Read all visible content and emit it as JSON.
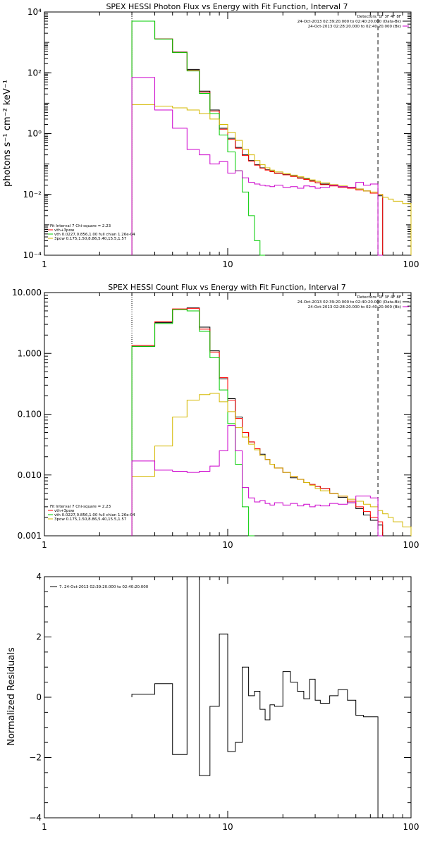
{
  "chart_data": [
    {
      "type": "line",
      "title": "SPEX HESSI Photon Flux vs Energy with Fit Function, Interval 7",
      "ylabel": "photons s⁻¹ cm⁻² keV⁻¹",
      "xlabel": "",
      "xscale": "log",
      "yscale": "log",
      "xlim": [
        1,
        100
      ],
      "ylim": [
        0.0001,
        10000
      ],
      "xticks": [
        {
          "v": 1,
          "t": "1"
        },
        {
          "v": 10,
          "t": "10"
        },
        {
          "v": 100,
          "t": "100"
        }
      ],
      "yticks": [
        {
          "v": 0.0001,
          "t": "10⁻⁴"
        },
        {
          "v": 0.01,
          "t": "10⁻²"
        },
        {
          "v": 1,
          "t": "10⁰"
        },
        {
          "v": 100,
          "t": "10²"
        },
        {
          "v": 10000,
          "t": "10⁴"
        }
      ],
      "vlines": [
        {
          "x": 3,
          "style": "dotted"
        },
        {
          "x": 66,
          "style": "dashed"
        }
      ],
      "legend_top": [
        "Detectors: 1F 3F 4F 8F",
        "24-Oct-2013 02:39:20.000 to 02:40:20.000 (Data-Bk)",
        "24-Oct-2013 02:28:20.000 to 02:40:20.000 (Bk)"
      ],
      "legend_top_colors": [
        "#000000",
        "#000000",
        "#cc00cc"
      ],
      "legend_bottom": [
        "Fit Interval 7  Chi-square = 2.23",
        "vth+3pow",
        "vth 0.0227,0.856,1.00  full chian 1.26e-04",
        "3pow 0.175,1.50,8.86,5.40,15.5,1.57"
      ],
      "legend_bottom_colors": [
        "#000000",
        "#ff0000",
        "#00cc00",
        "#d4b800"
      ],
      "edges": [
        3,
        4,
        5,
        6,
        7,
        8,
        9,
        10,
        11,
        12,
        13,
        14,
        15,
        16,
        17,
        18,
        20,
        22,
        24,
        26,
        28,
        30,
        32,
        36,
        40,
        45,
        50,
        55,
        60,
        66,
        70,
        75,
        80,
        90,
        100
      ],
      "series": [
        {
          "name": "Data-Bk",
          "color": "#000000",
          "values": [
            5000,
            1300,
            480,
            130,
            25,
            6,
            1.5,
            0.7,
            0.35,
            0.2,
            0.13,
            0.095,
            0.075,
            0.065,
            0.058,
            0.05,
            0.045,
            0.04,
            0.035,
            0.032,
            0.028,
            0.024,
            0.022,
            0.02,
            0.018,
            0.017,
            0.015,
            0.013,
            0.011,
            0.009,
            null,
            null,
            null,
            null
          ]
        },
        {
          "name": "vth+3pow",
          "color": "#ff0000",
          "values": [
            5000,
            1300,
            470,
            120,
            23,
            5.5,
            1.4,
            0.65,
            0.33,
            0.19,
            0.125,
            0.092,
            0.073,
            0.063,
            0.056,
            0.049,
            0.044,
            0.039,
            0.034,
            0.031,
            0.027,
            0.024,
            0.021,
            0.019,
            0.017,
            0.016,
            0.014,
            0.013,
            0.011,
            0.01,
            null,
            null,
            null,
            null
          ]
        },
        {
          "name": "vth",
          "color": "#00cc00",
          "values": [
            5000,
            1290,
            460,
            115,
            21,
            4.5,
            0.9,
            0.25,
            0.06,
            0.012,
            0.002,
            0.0003,
            5e-05,
            null,
            null,
            null,
            null,
            null,
            null,
            null,
            null,
            null,
            null,
            null,
            null,
            null,
            null,
            null,
            null,
            null,
            null,
            null,
            null,
            null
          ]
        },
        {
          "name": "3pow",
          "color": "#d4b800",
          "values": [
            9,
            8,
            7,
            6,
            4.5,
            3,
            2,
            1.1,
            0.6,
            0.3,
            0.2,
            0.13,
            0.095,
            0.075,
            0.063,
            0.055,
            0.048,
            0.043,
            0.038,
            0.034,
            0.03,
            0.027,
            0.024,
            0.021,
            0.019,
            0.017,
            0.015,
            0.013,
            0.012,
            0.01,
            0.008,
            0.007,
            0.006,
            0.005
          ]
        },
        {
          "name": "Bk",
          "color": "#cc00cc",
          "values": [
            70,
            6,
            1.5,
            0.3,
            0.2,
            0.1,
            0.12,
            0.05,
            0.06,
            0.035,
            0.025,
            0.022,
            0.02,
            0.019,
            0.018,
            0.02,
            0.017,
            0.018,
            0.016,
            0.019,
            0.018,
            0.016,
            0.017,
            0.02,
            0.018,
            0.017,
            0.025,
            0.02,
            0.022,
            0.0001,
            null,
            null,
            null,
            null
          ]
        }
      ]
    },
    {
      "type": "line",
      "title": "SPEX HESSI Count Flux vs Energy with Fit Function, Interval 7",
      "ylabel": "",
      "xlabel": "",
      "xscale": "log",
      "yscale": "log",
      "xlim": [
        1,
        100
      ],
      "ylim": [
        0.001,
        10
      ],
      "xticks": [
        {
          "v": 1,
          "t": "1"
        },
        {
          "v": 10,
          "t": "10"
        },
        {
          "v": 100,
          "t": "100"
        }
      ],
      "yticks": [
        {
          "v": 0.001,
          "t": "0.001"
        },
        {
          "v": 0.01,
          "t": "0.010"
        },
        {
          "v": 0.1,
          "t": "0.100"
        },
        {
          "v": 1,
          "t": "1.000"
        },
        {
          "v": 10,
          "t": "10.000"
        }
      ],
      "vlines": [
        {
          "x": 3,
          "style": "dotted"
        },
        {
          "x": 66,
          "style": "dashed"
        }
      ],
      "legend_top": [
        "Detectors: 1F 3F 4F 8F",
        "24-Oct-2013 02:39:20.000 to 02:40:20.000 (Data-Bk)",
        "24-Oct-2013 02:28:20.000 to 02:40:20.000 (Bk)"
      ],
      "legend_top_colors": [
        "#000000",
        "#000000",
        "#cc00cc"
      ],
      "legend_bottom": [
        "Fit Interval 7  Chi-square = 2.23",
        "vth+3pow",
        "vth 0.0227,0.856,1.00  full chian 1.26e-04",
        "3pow 0.175,1.50,8.86,5.40,15.5,1.57"
      ],
      "legend_bottom_colors": [
        "#000000",
        "#ff0000",
        "#00cc00",
        "#d4b800"
      ],
      "edges": [
        3,
        4,
        5,
        6,
        7,
        8,
        9,
        10,
        11,
        12,
        13,
        14,
        15,
        16,
        17,
        18,
        20,
        22,
        24,
        26,
        28,
        30,
        32,
        36,
        40,
        45,
        50,
        55,
        60,
        66,
        70,
        75,
        80,
        90,
        100
      ],
      "series": [
        {
          "name": "Data-Bk",
          "color": "#000000",
          "values": [
            1.3,
            3.2,
            5.2,
            5.6,
            2.7,
            1.1,
            0.38,
            0.18,
            0.09,
            0.05,
            0.035,
            0.027,
            0.022,
            0.018,
            0.015,
            0.013,
            0.011,
            0.009,
            0.0085,
            0.0075,
            0.007,
            0.0065,
            0.006,
            0.005,
            0.0043,
            0.0035,
            0.0028,
            0.0022,
            0.0018,
            0.0015,
            null,
            null,
            null,
            null
          ]
        },
        {
          "name": "vth+3pow",
          "color": "#ff0000",
          "values": [
            1.35,
            3.3,
            5.4,
            5.5,
            2.5,
            1.05,
            0.4,
            0.17,
            0.085,
            0.05,
            0.035,
            0.027,
            0.021,
            0.018,
            0.015,
            0.013,
            0.011,
            0.0095,
            0.0085,
            0.0075,
            0.007,
            0.0065,
            0.006,
            0.005,
            0.0045,
            0.0037,
            0.003,
            0.0025,
            0.002,
            0.0017,
            null,
            null,
            null,
            null
          ]
        },
        {
          "name": "vth",
          "color": "#00cc00",
          "values": [
            1.3,
            3.1,
            5.2,
            5.0,
            2.3,
            0.85,
            0.25,
            0.07,
            0.015,
            0.003,
            0.0009,
            null,
            null,
            null,
            null,
            null,
            null,
            null,
            null,
            null,
            null,
            null,
            null,
            null,
            null,
            null,
            null,
            null,
            null,
            null,
            null,
            null,
            null,
            null
          ]
        },
        {
          "name": "3pow",
          "color": "#d4b800",
          "values": [
            0.0095,
            0.03,
            0.09,
            0.17,
            0.21,
            0.22,
            0.16,
            0.11,
            0.06,
            0.042,
            0.032,
            0.026,
            0.021,
            0.018,
            0.015,
            0.013,
            0.011,
            0.0095,
            0.0085,
            0.0075,
            0.0068,
            0.006,
            0.0055,
            0.005,
            0.0045,
            0.004,
            0.0037,
            0.0033,
            0.003,
            0.0026,
            0.0023,
            0.002,
            0.0017,
            0.0014
          ]
        },
        {
          "name": "Bk",
          "color": "#cc00cc",
          "values": [
            0.017,
            0.012,
            0.0115,
            0.011,
            0.0115,
            0.014,
            0.025,
            0.065,
            0.025,
            0.0062,
            0.0042,
            0.0036,
            0.0038,
            0.0034,
            0.0032,
            0.0035,
            0.0032,
            0.0034,
            0.0031,
            0.0033,
            0.003,
            0.0032,
            0.0031,
            0.0034,
            0.0033,
            0.0035,
            0.0045,
            0.0045,
            0.0042,
            0.001,
            null,
            null,
            null,
            null
          ]
        }
      ]
    },
    {
      "type": "line",
      "title": "",
      "ylabel": "Normalized Residuals",
      "xlabel": "",
      "xscale": "log",
      "yscale": "linear",
      "xlim": [
        1,
        100
      ],
      "ylim": [
        -4,
        4
      ],
      "xticks": [
        {
          "v": 1,
          "t": "1"
        },
        {
          "v": 10,
          "t": "10"
        },
        {
          "v": 100,
          "t": "100"
        }
      ],
      "yticks": [
        {
          "v": -4,
          "t": "−4"
        },
        {
          "v": -2,
          "t": "−2"
        },
        {
          "v": 0,
          "t": "0"
        },
        {
          "v": 2,
          "t": "2"
        },
        {
          "v": 4,
          "t": "4"
        }
      ],
      "legend_top": [
        "7. 24-Oct-2013 02:39:20.000 to 02:40:20.000"
      ],
      "legend_top_colors": [
        "#000000"
      ],
      "edges": [
        3,
        4,
        5,
        6,
        7,
        8,
        9,
        10,
        11,
        12,
        13,
        14,
        15,
        16,
        17,
        18,
        20,
        22,
        24,
        26,
        28,
        30,
        32,
        36,
        40,
        45,
        50,
        55,
        60,
        66
      ],
      "series": [
        {
          "name": "",
          "color": "#000000",
          "values": [
            0.1,
            0.45,
            -1.9,
            4.0,
            -2.6,
            -0.3,
            2.1,
            -1.8,
            -1.5,
            1.0,
            0.05,
            0.2,
            -0.4,
            -0.75,
            -0.25,
            -0.3,
            0.85,
            0.5,
            0.2,
            -0.05,
            0.6,
            -0.1,
            -0.2,
            0.05,
            0.25,
            -0.1,
            -0.6,
            -0.65,
            -0.65
          ]
        }
      ]
    }
  ]
}
